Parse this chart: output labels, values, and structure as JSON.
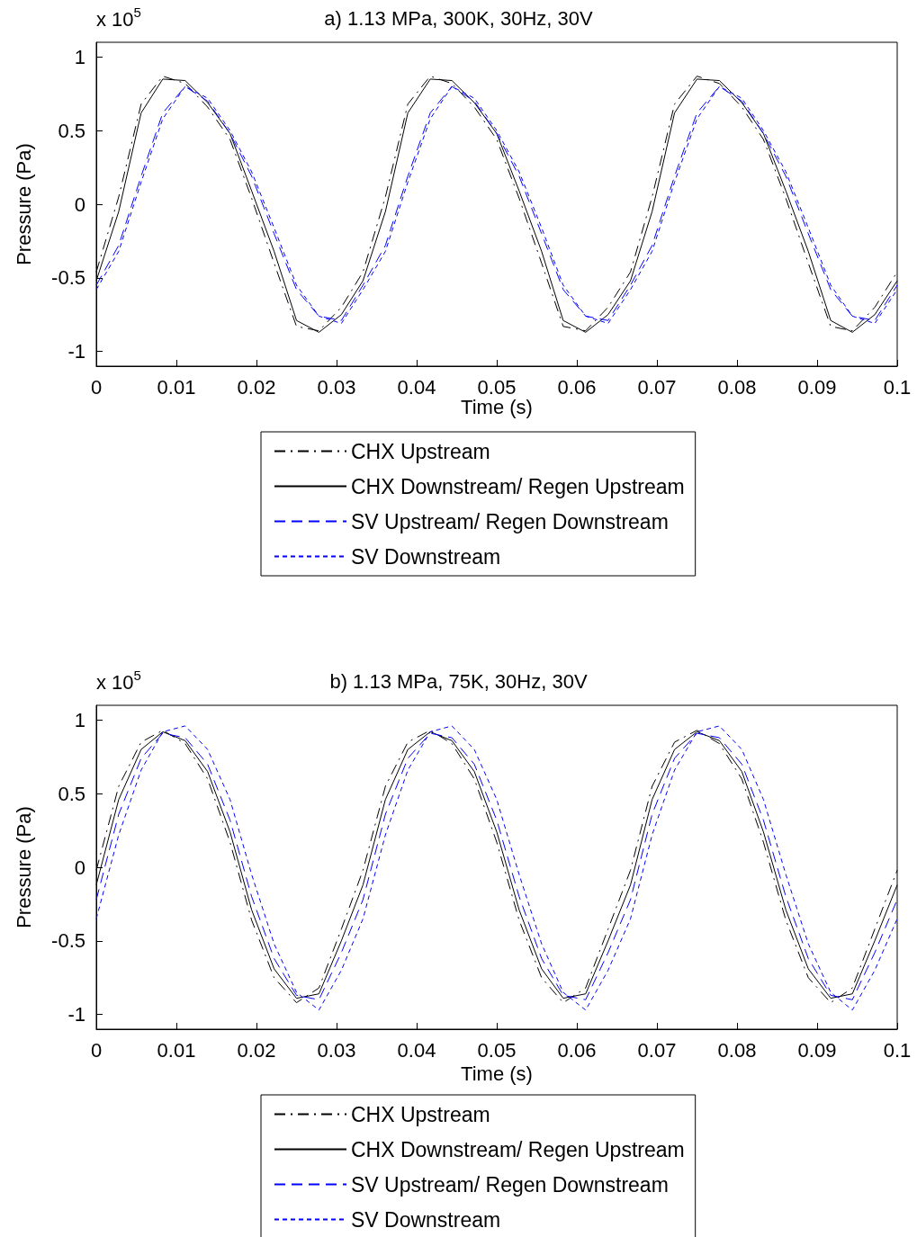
{
  "chart_data": [
    {
      "type": "line",
      "title": "a) 1.13 MPa, 300K, 30Hz, 30V",
      "xlabel": "Time (s)",
      "ylabel": "Pressure (Pa)",
      "annotations": [
        "x 10$^{5}$"
      ],
      "x": [
        0,
        0.0028,
        0.0056,
        0.0083,
        0.0111,
        0.0139,
        0.0167,
        0.0194,
        0.0222,
        0.025,
        0.0278,
        0.0306,
        0.0333,
        0.0361,
        0.0389,
        0.0417,
        0.0444,
        0.0472,
        0.05,
        0.0528,
        0.0556,
        0.0583,
        0.0611,
        0.0639,
        0.0667,
        0.0694,
        0.0722,
        0.075,
        0.0778,
        0.0806,
        0.0833,
        0.0861,
        0.0889,
        0.0917,
        0.0944,
        0.0972,
        0.1
      ],
      "series": [
        {
          "name": "CHX Upstream",
          "color": "#000000",
          "line_style": "dashdot",
          "values": [
            -0.46,
            0.05,
            0.68,
            0.87,
            0.82,
            0.66,
            0.44,
            0.04,
            -0.4,
            -0.83,
            -0.86,
            -0.7,
            -0.46,
            0.05,
            0.68,
            0.87,
            0.82,
            0.66,
            0.44,
            0.04,
            -0.4,
            -0.83,
            -0.86,
            -0.7,
            -0.46,
            0.05,
            0.68,
            0.87,
            0.82,
            0.66,
            0.44,
            0.04,
            -0.4,
            -0.83,
            -0.86,
            -0.7,
            -0.46
          ]
        },
        {
          "name": "CHX Downstream/ Regen Upstream",
          "color": "#000000",
          "line_style": "solid",
          "values": [
            -0.52,
            -0.05,
            0.62,
            0.85,
            0.84,
            0.69,
            0.48,
            0.09,
            -0.32,
            -0.79,
            -0.87,
            -0.75,
            -0.52,
            -0.05,
            0.62,
            0.85,
            0.84,
            0.69,
            0.48,
            0.09,
            -0.32,
            -0.79,
            -0.87,
            -0.75,
            -0.52,
            -0.05,
            0.62,
            0.85,
            0.84,
            0.69,
            0.48,
            0.09,
            -0.32,
            -0.79,
            -0.87,
            -0.75,
            -0.52
          ]
        },
        {
          "name": "SV Upstream/ Regen Downstream",
          "color": "#0000ff",
          "line_style": "dashed",
          "values": [
            -0.55,
            -0.28,
            0.19,
            0.62,
            0.8,
            0.7,
            0.48,
            0.19,
            -0.2,
            -0.58,
            -0.76,
            -0.79,
            -0.55,
            -0.28,
            0.19,
            0.62,
            0.8,
            0.7,
            0.48,
            0.19,
            -0.2,
            -0.58,
            -0.76,
            -0.79,
            -0.55,
            -0.28,
            0.19,
            0.62,
            0.8,
            0.7,
            0.48,
            0.19,
            -0.2,
            -0.58,
            -0.76,
            -0.79,
            -0.55
          ]
        },
        {
          "name": "SV Downstream",
          "color": "#0000ff",
          "line_style": "dotted",
          "values": [
            -0.58,
            -0.32,
            0.15,
            0.58,
            0.8,
            0.72,
            0.5,
            0.22,
            -0.16,
            -0.55,
            -0.76,
            -0.81,
            -0.58,
            -0.32,
            0.15,
            0.58,
            0.8,
            0.72,
            0.5,
            0.22,
            -0.16,
            -0.55,
            -0.76,
            -0.81,
            -0.58,
            -0.32,
            0.15,
            0.58,
            0.8,
            0.72,
            0.5,
            0.22,
            -0.16,
            -0.55,
            -0.76,
            -0.81,
            -0.58
          ]
        }
      ],
      "xlim": [
        0,
        0.1
      ],
      "xticks": [
        0,
        0.01,
        0.02,
        0.03,
        0.04,
        0.05,
        0.06,
        0.07,
        0.08,
        0.09,
        0.1
      ],
      "ylim": [
        -1.1,
        1.1
      ],
      "yticks": [
        -1,
        -0.5,
        0,
        0.5,
        1
      ],
      "grid": false,
      "legend": "bottom",
      "marker": "none"
    },
    {
      "type": "line",
      "title": "b) 1.13 MPa, 75K, 30Hz, 30V",
      "xlabel": "Time (s)",
      "ylabel": "Pressure (Pa)",
      "annotations": [
        "x 10$^{5}$"
      ],
      "x": [
        0,
        0.0028,
        0.0056,
        0.0083,
        0.0111,
        0.0139,
        0.0167,
        0.0194,
        0.0222,
        0.025,
        0.0278,
        0.0306,
        0.0333,
        0.0361,
        0.0389,
        0.0417,
        0.0444,
        0.0472,
        0.05,
        0.0528,
        0.0556,
        0.0583,
        0.0611,
        0.0639,
        0.0667,
        0.0694,
        0.0722,
        0.075,
        0.0778,
        0.0806,
        0.0833,
        0.0861,
        0.0889,
        0.0917,
        0.0944,
        0.0972,
        0.1
      ],
      "series": [
        {
          "name": "CHX Upstream",
          "color": "#000000",
          "line_style": "dashdot",
          "values": [
            -0.02,
            0.55,
            0.85,
            0.93,
            0.84,
            0.6,
            0.17,
            -0.36,
            -0.75,
            -0.92,
            -0.82,
            -0.42,
            -0.02,
            0.55,
            0.85,
            0.93,
            0.84,
            0.6,
            0.17,
            -0.36,
            -0.75,
            -0.92,
            -0.82,
            -0.42,
            -0.02,
            0.55,
            0.85,
            0.93,
            0.84,
            0.6,
            0.17,
            -0.36,
            -0.75,
            -0.92,
            -0.82,
            -0.42,
            -0.02
          ]
        },
        {
          "name": "CHX Downstream/ Regen Upstream",
          "color": "#000000",
          "line_style": "solid",
          "values": [
            -0.12,
            0.46,
            0.8,
            0.92,
            0.86,
            0.65,
            0.24,
            -0.29,
            -0.69,
            -0.89,
            -0.86,
            -0.5,
            -0.12,
            0.46,
            0.8,
            0.92,
            0.86,
            0.65,
            0.24,
            -0.29,
            -0.69,
            -0.89,
            -0.86,
            -0.5,
            -0.12,
            0.46,
            0.8,
            0.92,
            0.86,
            0.65,
            0.24,
            -0.29,
            -0.69,
            -0.89,
            -0.86,
            -0.5,
            -0.12
          ]
        },
        {
          "name": "SV Upstream/ Regen Downstream",
          "color": "#0000ff",
          "line_style": "dashed",
          "values": [
            -0.22,
            0.36,
            0.74,
            0.91,
            0.88,
            0.7,
            0.32,
            -0.2,
            -0.62,
            -0.87,
            -0.9,
            -0.58,
            -0.22,
            0.36,
            0.74,
            0.91,
            0.88,
            0.7,
            0.32,
            -0.2,
            -0.62,
            -0.87,
            -0.9,
            -0.58,
            -0.22,
            0.36,
            0.74,
            0.91,
            0.88,
            0.7,
            0.32,
            -0.2,
            -0.62,
            -0.87,
            -0.9,
            -0.58,
            -0.22
          ]
        },
        {
          "name": "SV Downstream",
          "color": "#0000ff",
          "line_style": "dotted",
          "values": [
            -0.35,
            0.22,
            0.66,
            0.92,
            0.96,
            0.8,
            0.46,
            -0.05,
            -0.52,
            -0.85,
            -0.97,
            -0.7,
            -0.35,
            0.22,
            0.66,
            0.92,
            0.96,
            0.8,
            0.46,
            -0.05,
            -0.52,
            -0.85,
            -0.97,
            -0.7,
            -0.35,
            0.22,
            0.66,
            0.92,
            0.96,
            0.8,
            0.46,
            -0.05,
            -0.52,
            -0.85,
            -0.97,
            -0.7,
            -0.35
          ]
        }
      ],
      "xlim": [
        0,
        0.1
      ],
      "xticks": [
        0,
        0.01,
        0.02,
        0.03,
        0.04,
        0.05,
        0.06,
        0.07,
        0.08,
        0.09,
        0.1
      ],
      "ylim": [
        -1.1,
        1.1
      ],
      "yticks": [
        -1,
        -0.5,
        0,
        0.5,
        1
      ],
      "grid": false,
      "legend": "bottom",
      "marker": "none"
    }
  ]
}
